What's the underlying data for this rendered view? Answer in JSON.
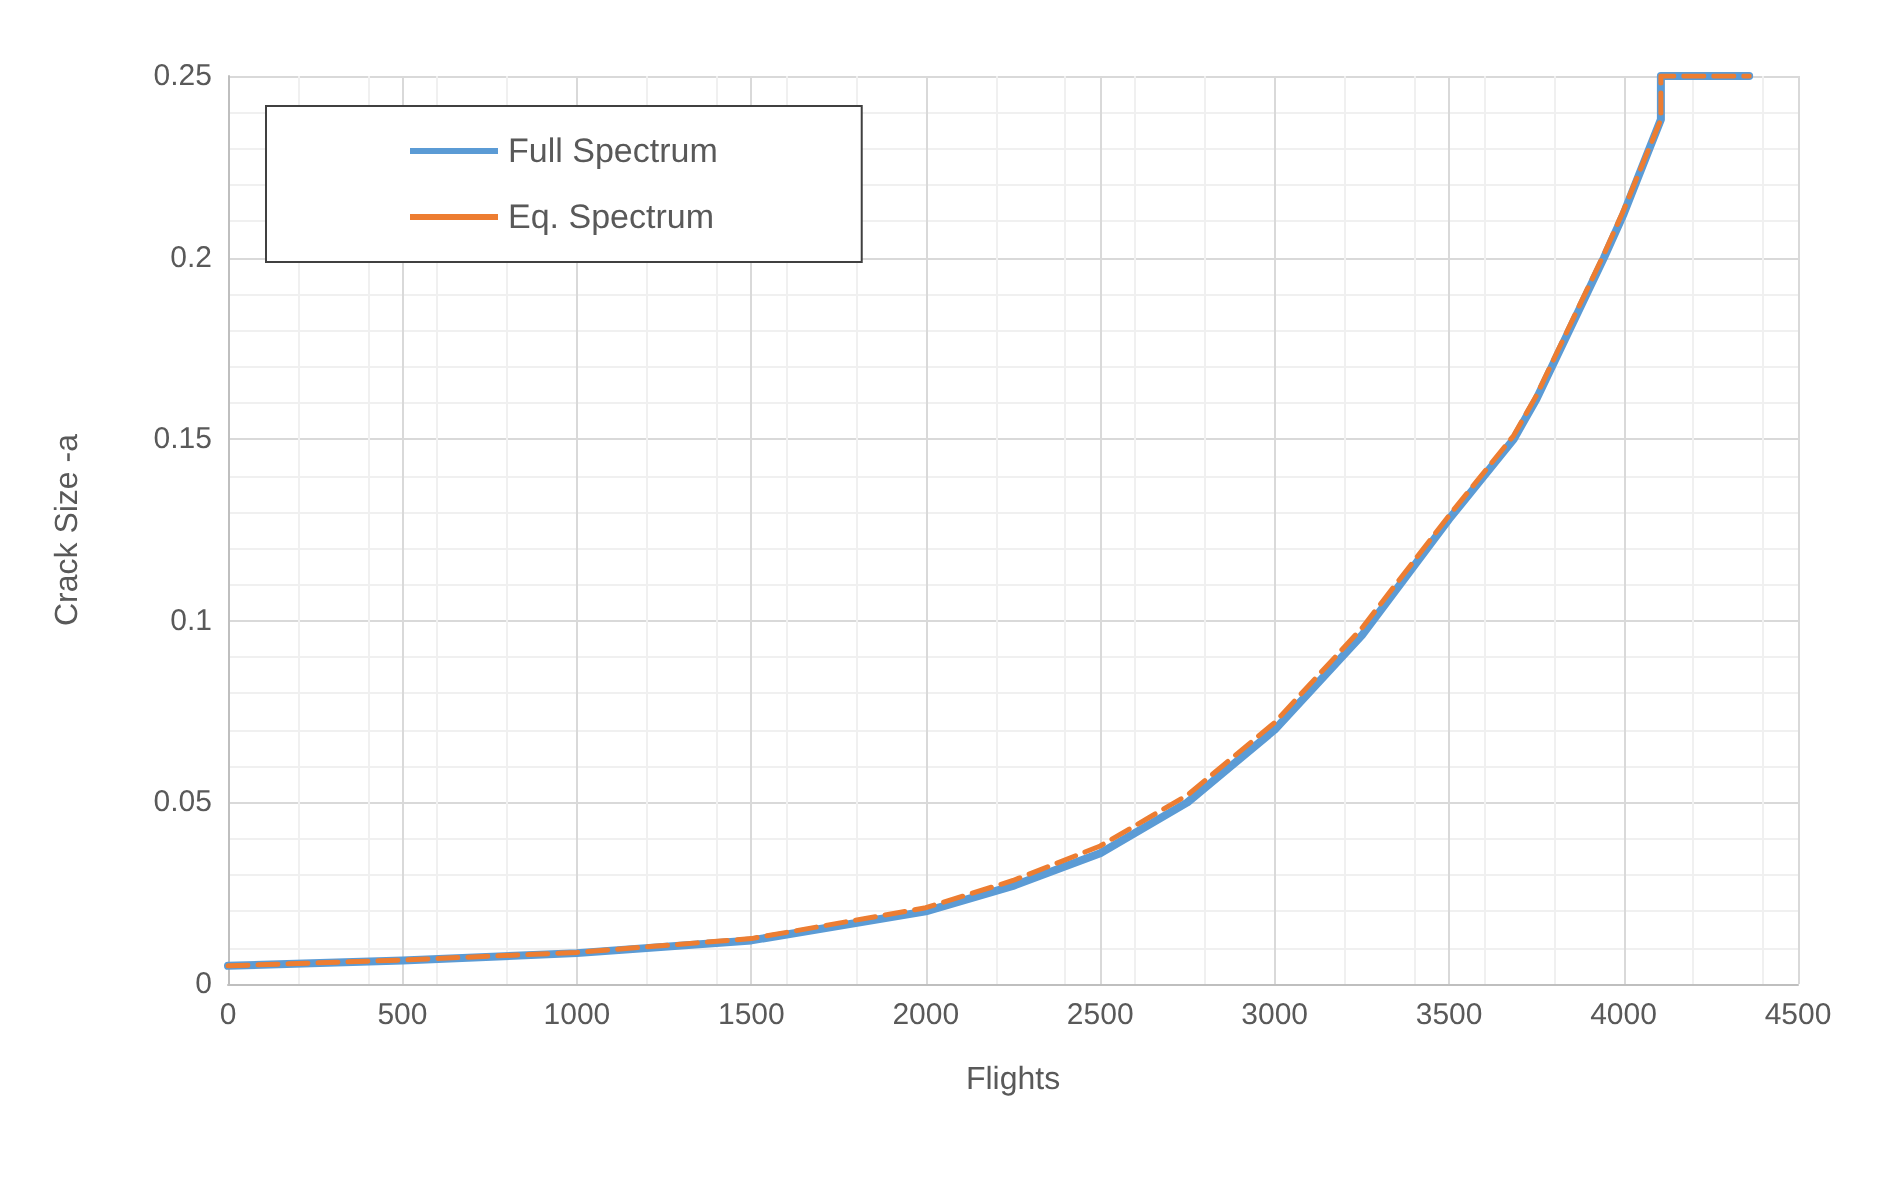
{
  "chart_data": {
    "type": "line",
    "xlabel": "Flights",
    "ylabel": "Crack Size -a",
    "xlim": [
      0,
      4500
    ],
    "xticks": [
      0,
      500,
      1000,
      1500,
      2000,
      2500,
      3000,
      3500,
      4000,
      4500
    ],
    "ylim": [
      0,
      0.25
    ],
    "yticks": [
      0,
      0.05,
      0.1,
      0.15,
      0.2,
      0.25
    ],
    "grid": true,
    "legend": "top left",
    "marker": "none",
    "x": [
      0,
      500,
      1000,
      1500,
      2000,
      2250,
      2500,
      2750,
      3000,
      3250,
      3500,
      3685,
      3750,
      3944,
      4000,
      4107,
      4107,
      4360
    ],
    "series": [
      {
        "name": "Full Spectrum",
        "color": "#5b9bd5",
        "line_style": "solid",
        "values": [
          0.005,
          0.0065,
          0.0085,
          0.012,
          0.02,
          0.027,
          0.036,
          0.05,
          0.07,
          0.096,
          0.128,
          0.15,
          0.161,
          0.2,
          0.212,
          0.238,
          0.25,
          0.25
        ]
      },
      {
        "name": "Eq. Spectrum",
        "color": "#ed7d31",
        "line_style": "dashed",
        "values": [
          0.005,
          0.0066,
          0.0087,
          0.0125,
          0.021,
          0.0285,
          0.038,
          0.052,
          0.072,
          0.098,
          0.129,
          0.151,
          0.162,
          0.201,
          0.213,
          0.238,
          0.25,
          0.25
        ]
      }
    ]
  }
}
